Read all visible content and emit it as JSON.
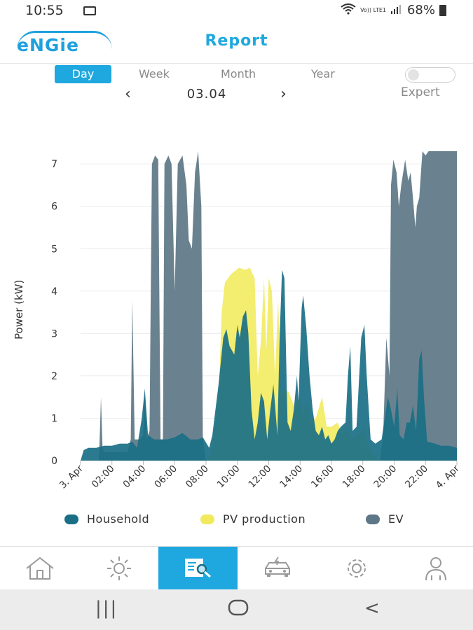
{
  "status": {
    "time": "10:55",
    "network": "Vo)) LTE1",
    "battery": "68%"
  },
  "header": {
    "logo_text": "eNGie",
    "title": "Report"
  },
  "tabs": [
    {
      "label": "Day",
      "active": true
    },
    {
      "label": "Week",
      "active": false
    },
    {
      "label": "Month",
      "active": false
    },
    {
      "label": "Year",
      "active": false
    }
  ],
  "expert": {
    "label": "Expert",
    "enabled": false
  },
  "date_nav": {
    "prev": "‹",
    "value": "03.04",
    "next": "›"
  },
  "chart_data": {
    "type": "area",
    "ylabel": "Power (kW)",
    "ylim": [
      0,
      7.3
    ],
    "yticks": [
      "0",
      "1",
      "2",
      "3",
      "4",
      "5",
      "6",
      "7"
    ],
    "xticks": [
      "3. Apr",
      "02:00",
      "04:00",
      "06:00",
      "08:00",
      "10:00",
      "12:00",
      "14:00",
      "16:00",
      "18:00",
      "20:00",
      "22:00",
      "4. Apr"
    ],
    "x_hours_range": [
      0,
      24
    ],
    "series": [
      {
        "name": "EV",
        "color": "#5d7786",
        "points": [
          [
            0,
            0
          ],
          [
            1.15,
            0
          ],
          [
            1.2,
            0.3
          ],
          [
            1.3,
            1.5
          ],
          [
            1.4,
            0.3
          ],
          [
            1.5,
            0.2
          ],
          [
            3.0,
            0.2
          ],
          [
            3.2,
            0.5
          ],
          [
            3.3,
            3.8
          ],
          [
            3.45,
            0.5
          ],
          [
            3.8,
            0.5
          ],
          [
            4.0,
            0.6
          ],
          [
            4.1,
            1.6
          ],
          [
            4.2,
            0.5
          ],
          [
            4.4,
            0.7
          ],
          [
            4.55,
            7.0
          ],
          [
            4.75,
            7.2
          ],
          [
            4.95,
            7.1
          ],
          [
            5.1,
            0.5
          ],
          [
            5.25,
            0.5
          ],
          [
            5.35,
            7.0
          ],
          [
            5.6,
            7.2
          ],
          [
            5.8,
            7.0
          ],
          [
            6.0,
            4.0
          ],
          [
            6.2,
            7.0
          ],
          [
            6.5,
            7.2
          ],
          [
            6.75,
            6.5
          ],
          [
            6.9,
            5.2
          ],
          [
            7.1,
            5.0
          ],
          [
            7.3,
            6.8
          ],
          [
            7.5,
            7.3
          ],
          [
            7.7,
            6.0
          ],
          [
            7.8,
            0.5
          ],
          [
            8.0,
            0
          ],
          [
            19.1,
            0
          ],
          [
            19.3,
            0.6
          ],
          [
            19.5,
            2.9
          ],
          [
            19.7,
            2.0
          ],
          [
            19.8,
            6.5
          ],
          [
            19.95,
            7.1
          ],
          [
            20.15,
            6.8
          ],
          [
            20.3,
            6.0
          ],
          [
            20.45,
            6.5
          ],
          [
            20.7,
            7.1
          ],
          [
            20.9,
            6.6
          ],
          [
            21.05,
            6.8
          ],
          [
            21.2,
            6.2
          ],
          [
            21.35,
            5.5
          ],
          [
            21.45,
            6.0
          ],
          [
            21.6,
            6.2
          ],
          [
            21.8,
            7.3
          ],
          [
            22.0,
            7.2
          ],
          [
            22.2,
            7.3
          ],
          [
            22.5,
            7.3
          ],
          [
            24,
            7.3
          ],
          [
            24,
            0
          ]
        ]
      },
      {
        "name": "PV production",
        "color": "#f1ea5c",
        "points": [
          [
            0,
            0
          ],
          [
            8.1,
            0
          ],
          [
            8.4,
            0.3
          ],
          [
            8.8,
            1.5
          ],
          [
            9.0,
            3.5
          ],
          [
            9.2,
            4.2
          ],
          [
            9.6,
            4.4
          ],
          [
            10.1,
            4.55
          ],
          [
            10.5,
            4.5
          ],
          [
            10.8,
            4.55
          ],
          [
            11.1,
            4.3
          ],
          [
            11.3,
            2.0
          ],
          [
            11.5,
            2.8
          ],
          [
            11.7,
            4.3
          ],
          [
            11.85,
            2.6
          ],
          [
            12.0,
            4.3
          ],
          [
            12.2,
            4.0
          ],
          [
            12.4,
            2.0
          ],
          [
            12.6,
            3.8
          ],
          [
            12.8,
            1.5
          ],
          [
            13.0,
            1.7
          ],
          [
            13.3,
            1.6
          ],
          [
            13.6,
            1.3
          ],
          [
            14.0,
            1.5
          ],
          [
            14.2,
            1.1
          ],
          [
            14.5,
            1.4
          ],
          [
            14.7,
            0.9
          ],
          [
            15.0,
            1.0
          ],
          [
            15.4,
            1.5
          ],
          [
            15.7,
            0.8
          ],
          [
            16.0,
            0.8
          ],
          [
            16.4,
            0.9
          ],
          [
            16.7,
            0.6
          ],
          [
            17.0,
            0.8
          ],
          [
            17.3,
            0.5
          ],
          [
            17.6,
            0.6
          ],
          [
            17.8,
            0.6
          ],
          [
            18.1,
            0.8
          ],
          [
            18.3,
            0.4
          ],
          [
            18.6,
            0.15
          ],
          [
            18.9,
            0.05
          ],
          [
            19.1,
            0
          ],
          [
            24,
            0
          ]
        ]
      },
      {
        "name": "Household",
        "color": "#1a6f86",
        "points": [
          [
            0,
            0
          ],
          [
            0.2,
            0.25
          ],
          [
            0.5,
            0.3
          ],
          [
            1.0,
            0.3
          ],
          [
            1.5,
            0.35
          ],
          [
            2.0,
            0.35
          ],
          [
            2.5,
            0.4
          ],
          [
            3.0,
            0.4
          ],
          [
            3.3,
            0.45
          ],
          [
            3.6,
            0.3
          ],
          [
            3.9,
            1.0
          ],
          [
            4.1,
            1.7
          ],
          [
            4.3,
            0.6
          ],
          [
            4.7,
            0.5
          ],
          [
            5.0,
            0.5
          ],
          [
            5.5,
            0.5
          ],
          [
            6.0,
            0.55
          ],
          [
            6.5,
            0.65
          ],
          [
            7.0,
            0.5
          ],
          [
            7.5,
            0.5
          ],
          [
            7.8,
            0.55
          ],
          [
            8.2,
            0.3
          ],
          [
            8.4,
            0.6
          ],
          [
            8.8,
            1.8
          ],
          [
            9.1,
            2.9
          ],
          [
            9.3,
            3.1
          ],
          [
            9.5,
            2.7
          ],
          [
            9.8,
            2.5
          ],
          [
            10.0,
            3.2
          ],
          [
            10.15,
            2.9
          ],
          [
            10.35,
            3.4
          ],
          [
            10.55,
            3.55
          ],
          [
            10.7,
            3.0
          ],
          [
            10.9,
            1.2
          ],
          [
            11.1,
            0.5
          ],
          [
            11.3,
            0.9
          ],
          [
            11.5,
            1.6
          ],
          [
            11.7,
            1.4
          ],
          [
            11.9,
            0.5
          ],
          [
            12.1,
            1.2
          ],
          [
            12.3,
            1.8
          ],
          [
            12.55,
            0.6
          ],
          [
            12.7,
            3.0
          ],
          [
            12.85,
            4.5
          ],
          [
            13.0,
            4.3
          ],
          [
            13.2,
            0.9
          ],
          [
            13.4,
            0.7
          ],
          [
            13.6,
            1.2
          ],
          [
            13.8,
            2.0
          ],
          [
            13.9,
            1.4
          ],
          [
            14.1,
            3.6
          ],
          [
            14.2,
            3.9
          ],
          [
            14.4,
            3.1
          ],
          [
            14.6,
            2.0
          ],
          [
            14.8,
            1.2
          ],
          [
            15.0,
            0.7
          ],
          [
            15.2,
            0.6
          ],
          [
            15.4,
            0.8
          ],
          [
            15.6,
            0.5
          ],
          [
            15.8,
            0.6
          ],
          [
            16.0,
            0.4
          ],
          [
            16.2,
            0.5
          ],
          [
            16.4,
            0.7
          ],
          [
            16.6,
            0.8
          ],
          [
            16.9,
            0.9
          ],
          [
            17.05,
            2.0
          ],
          [
            17.2,
            2.7
          ],
          [
            17.35,
            0.7
          ],
          [
            17.6,
            0.8
          ],
          [
            17.9,
            2.9
          ],
          [
            18.1,
            3.2
          ],
          [
            18.25,
            2.0
          ],
          [
            18.5,
            0.5
          ],
          [
            18.8,
            0.4
          ],
          [
            19.0,
            0.45
          ],
          [
            19.2,
            0.5
          ],
          [
            19.4,
            1.0
          ],
          [
            19.6,
            1.5
          ],
          [
            19.8,
            1.2
          ],
          [
            20.0,
            0.8
          ],
          [
            20.2,
            1.7
          ],
          [
            20.35,
            0.6
          ],
          [
            20.6,
            0.5
          ],
          [
            20.8,
            0.9
          ],
          [
            21.0,
            0.9
          ],
          [
            21.2,
            1.3
          ],
          [
            21.4,
            0.7
          ],
          [
            21.6,
            2.4
          ],
          [
            21.75,
            2.6
          ],
          [
            21.9,
            1.5
          ],
          [
            22.1,
            0.45
          ],
          [
            22.6,
            0.4
          ],
          [
            23.0,
            0.35
          ],
          [
            23.5,
            0.35
          ],
          [
            24,
            0.3
          ],
          [
            24,
            0
          ]
        ]
      }
    ]
  },
  "legend": [
    {
      "label": "Household",
      "color": "#1a6f86"
    },
    {
      "label": "PV production",
      "color": "#f1ea5c"
    },
    {
      "label": "EV",
      "color": "#5d7786"
    }
  ],
  "bottom_nav": [
    {
      "icon": "home-icon",
      "active": false
    },
    {
      "icon": "sun-icon",
      "active": false
    },
    {
      "icon": "report-icon",
      "active": true
    },
    {
      "icon": "car-icon",
      "active": false
    },
    {
      "icon": "gear-icon",
      "active": false
    },
    {
      "icon": "profile-icon",
      "active": false
    }
  ],
  "system_nav": {
    "recents": "|||",
    "home": "○",
    "back": "<"
  }
}
